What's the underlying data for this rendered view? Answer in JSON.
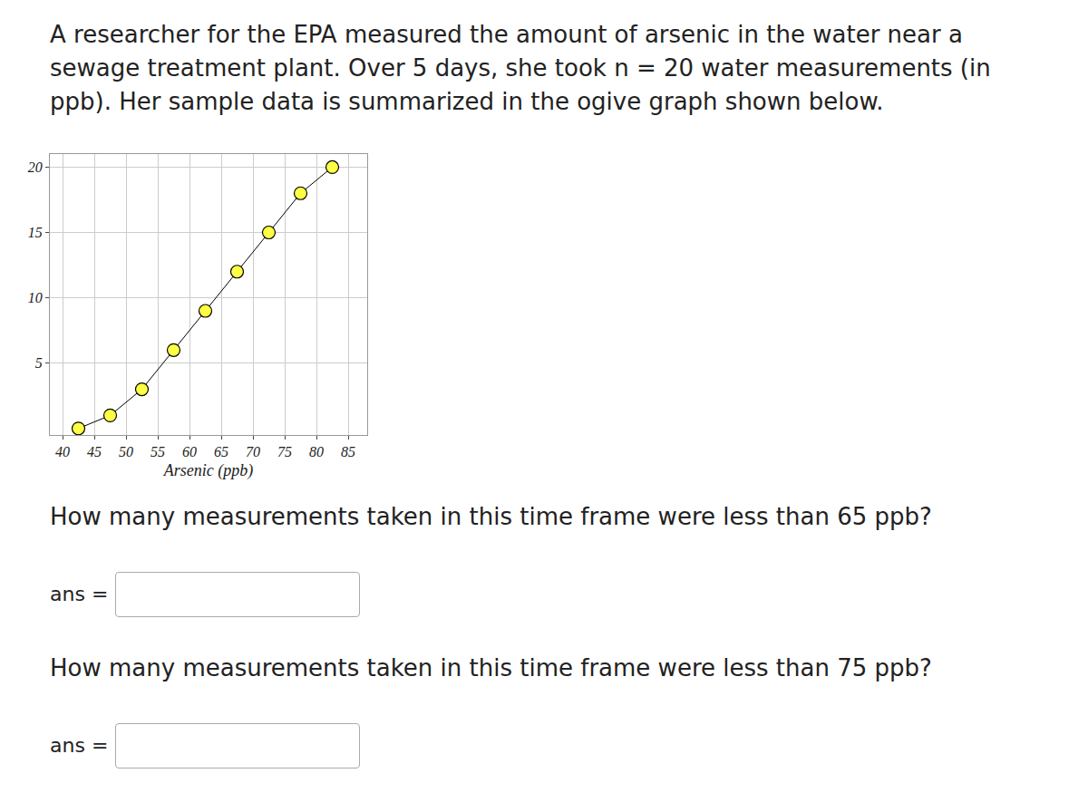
{
  "intro": "A researcher for the EPA measured the amount of arsenic in the water near a sewage treatment plant. Over 5 days, she took n = 20 water measurements (in ppb). Her sample data is summarized in the ogive graph shown below.",
  "chart_data": {
    "type": "line",
    "x": [
      42.5,
      47.5,
      52.5,
      57.5,
      62.5,
      67.5,
      72.5,
      77.5,
      82.5
    ],
    "values": [
      0,
      1,
      3,
      6,
      9,
      12,
      15,
      18,
      20
    ],
    "x_label": "Arsenic (ppb)",
    "xlim": [
      38,
      88
    ],
    "xticks": [
      40,
      45,
      50,
      55,
      60,
      65,
      70,
      75,
      80,
      85
    ],
    "ylim": [
      -0.5,
      21
    ],
    "yticks": [
      5,
      10,
      15,
      20
    ],
    "grid": true,
    "color": "#ffff44",
    "marker": "circle"
  },
  "questions": [
    {
      "text": "How many measurements taken in this time frame were less than 65 ppb?",
      "answer_label": "ans ="
    },
    {
      "text": "How many measurements taken in this time frame were less than 75 ppb?",
      "answer_label": "ans ="
    }
  ]
}
